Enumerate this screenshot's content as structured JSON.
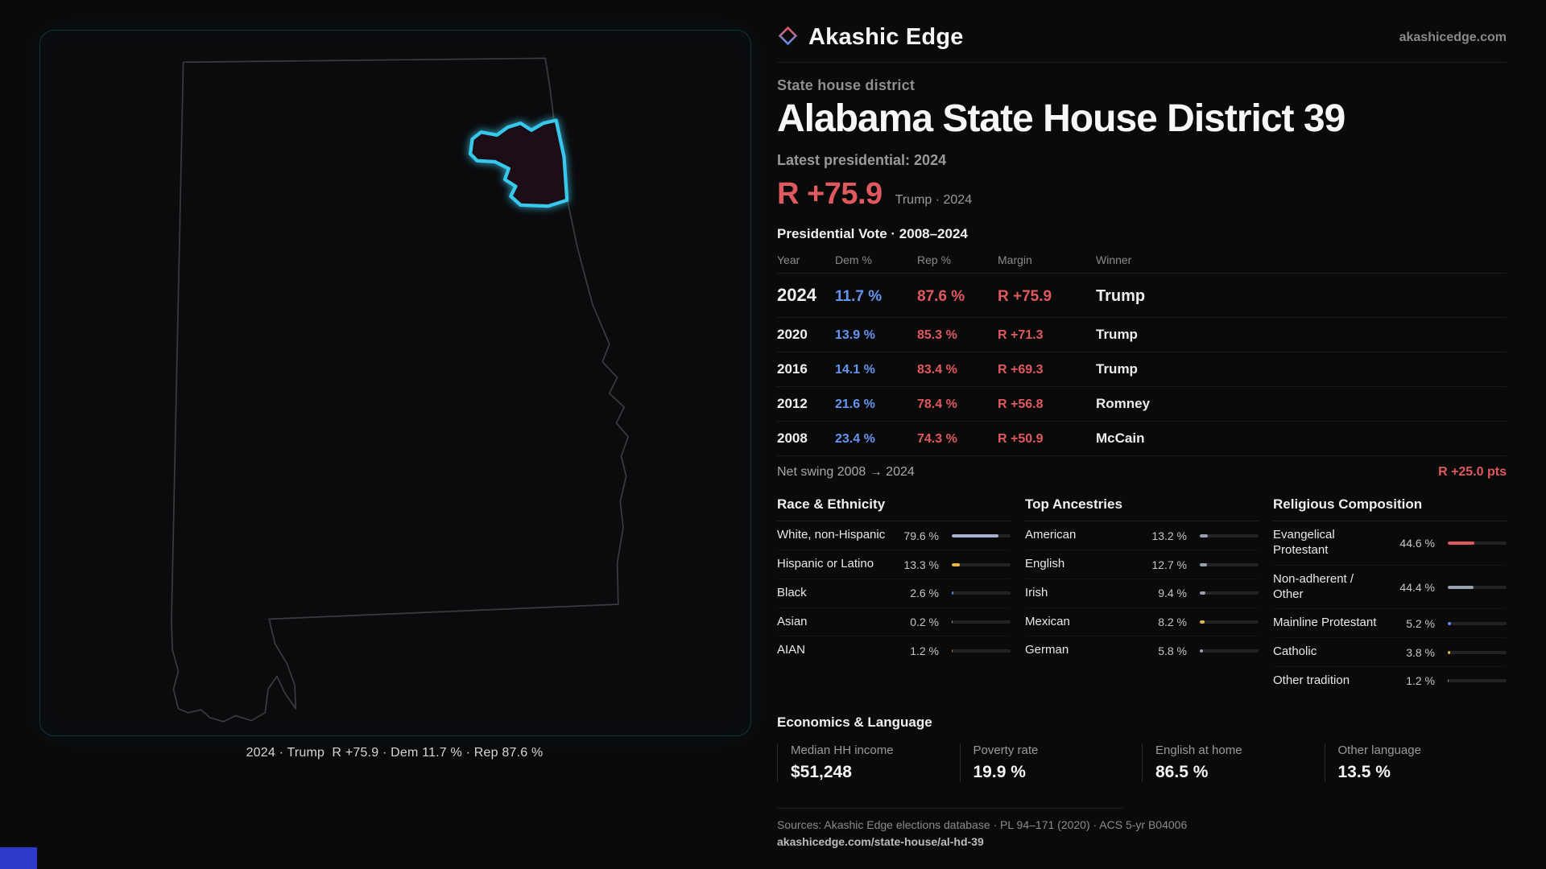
{
  "brand": {
    "name": "Akashic Edge",
    "site": "akashicedge.com"
  },
  "header": {
    "kicker": "State house district",
    "title": "Alabama State House District 39",
    "latest_label": "Latest presidential: 2024",
    "margin": "R +75.9",
    "margin_note": "Trump · 2024"
  },
  "map": {
    "caption": "2024 · Trump  R +75.9 · Dem 11.7 % · Rep 87.6 %",
    "district_color": "#38c8ec",
    "outline_color": "#3a3b3e"
  },
  "vote": {
    "title": "Presidential Vote · 2008–2024",
    "columns": [
      "Year",
      "Dem %",
      "Rep %",
      "Margin",
      "Winner"
    ],
    "rows": [
      {
        "year": "2024",
        "dem": "11.7 %",
        "rep": "87.6 %",
        "margin": "R +75.9",
        "winner": "Trump"
      },
      {
        "year": "2020",
        "dem": "13.9 %",
        "rep": "85.3 %",
        "margin": "R +71.3",
        "winner": "Trump"
      },
      {
        "year": "2016",
        "dem": "14.1 %",
        "rep": "83.4 %",
        "margin": "R +69.3",
        "winner": "Trump"
      },
      {
        "year": "2012",
        "dem": "21.6 %",
        "rep": "78.4 %",
        "margin": "R +56.8",
        "winner": "Romney"
      },
      {
        "year": "2008",
        "dem": "23.4 %",
        "rep": "74.3 %",
        "margin": "R +50.9",
        "winner": "McCain"
      }
    ],
    "swing_label": "Net swing 2008 → 2024",
    "swing_value": "R +25.0 pts"
  },
  "race": {
    "title": "Race & Ethnicity",
    "items": [
      {
        "label": "White, non-Hispanic",
        "value": "79.6 %",
        "pct": 79.6,
        "color": "#a8b2cf"
      },
      {
        "label": "Hispanic or Latino",
        "value": "13.3 %",
        "pct": 13.3,
        "color": "#e3b54d"
      },
      {
        "label": "Black",
        "value": "2.6 %",
        "pct": 2.6,
        "color": "#5d8bf0"
      },
      {
        "label": "Asian",
        "value": "0.2 %",
        "pct": 0.2,
        "color": "#9aa0ad"
      },
      {
        "label": "AIAN",
        "value": "1.2 %",
        "pct": 1.2,
        "color": "#cf7a4a"
      }
    ]
  },
  "ancestries": {
    "title": "Top Ancestries",
    "items": [
      {
        "label": "American",
        "value": "13.2 %",
        "pct": 13.2,
        "color": "#9aa0ad"
      },
      {
        "label": "English",
        "value": "12.7 %",
        "pct": 12.7,
        "color": "#9aa0ad"
      },
      {
        "label": "Irish",
        "value": "9.4 %",
        "pct": 9.4,
        "color": "#9aa0ad"
      },
      {
        "label": "Mexican",
        "value": "8.2 %",
        "pct": 8.2,
        "color": "#e3b54d"
      },
      {
        "label": "German",
        "value": "5.8 %",
        "pct": 5.8,
        "color": "#9aa0ad"
      }
    ]
  },
  "religion": {
    "title": "Religious Composition",
    "items": [
      {
        "label": "Evangelical Protestant",
        "value": "44.6 %",
        "pct": 44.6,
        "color": "#e0595f"
      },
      {
        "label": "Non-adherent / Other",
        "value": "44.4 %",
        "pct": 44.4,
        "color": "#9aa0ad"
      },
      {
        "label": "Mainline Protestant",
        "value": "5.2 %",
        "pct": 5.2,
        "color": "#5d8bf0"
      },
      {
        "label": "Catholic",
        "value": "3.8 %",
        "pct": 3.8,
        "color": "#e3b54d"
      },
      {
        "label": "Other tradition",
        "value": "1.2 %",
        "pct": 1.2,
        "color": "#9aa0ad"
      }
    ]
  },
  "economics": {
    "title": "Economics & Language",
    "stats": [
      {
        "label": "Median HH income",
        "value": "$51,248"
      },
      {
        "label": "Poverty rate",
        "value": "19.9 %"
      },
      {
        "label": "English at home",
        "value": "86.5 %"
      },
      {
        "label": "Other language",
        "value": "13.5 %"
      }
    ]
  },
  "footer": {
    "sources": "Sources: Akashic Edge elections database · PL 94–171 (2020) · ACS 5-yr B04006",
    "link": "akashicedge.com/state-house/al-hd-39"
  },
  "colors": {
    "rep": "#e0595f",
    "dem": "#6695f0",
    "accent": "#38c8ec",
    "corner": "#2b3ac9"
  }
}
